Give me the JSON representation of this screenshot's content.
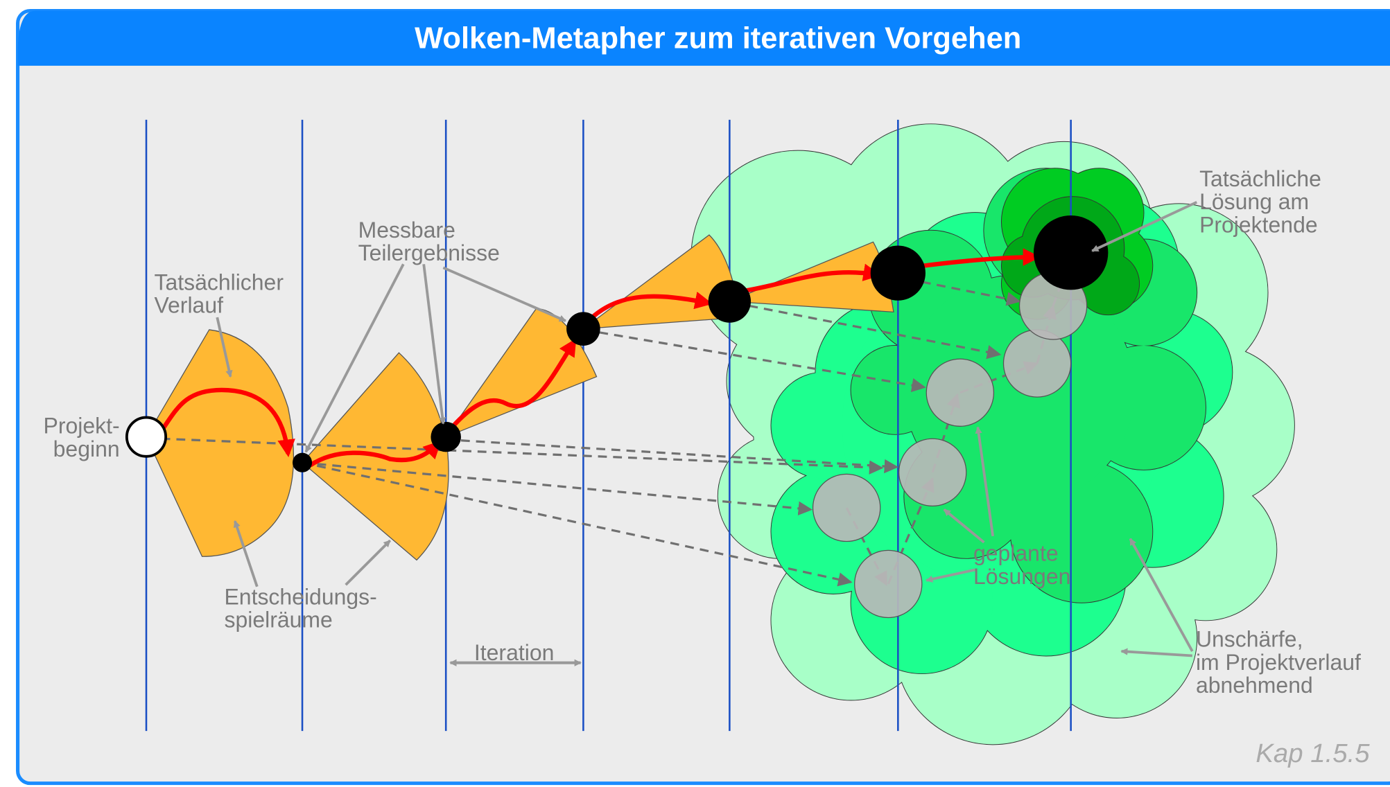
{
  "header": {
    "title": "Wolken-Metapher zum iterativen Vorgehen"
  },
  "labels": {
    "actual_path": [
      "Tatsächlicher",
      "Verlauf"
    ],
    "measurable": [
      "Messbare",
      "Teilergebnisse"
    ],
    "start": [
      "Projekt-",
      "beginn"
    ],
    "scope": [
      "Entscheidungs-",
      "spielräume"
    ],
    "iteration": "Iteration",
    "planned": [
      "geplante",
      "Lösungen"
    ],
    "actual_solution": [
      "Tatsächliche",
      "Lösung am",
      "Projektende"
    ],
    "uncertainty": [
      "Unschärfe,",
      "im Projektverlauf",
      "abnehmend"
    ]
  },
  "footer": "Kap 1.5.5"
}
